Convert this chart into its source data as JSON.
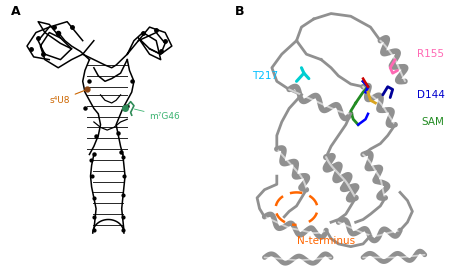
{
  "panel_A_label": "A",
  "panel_B_label": "B",
  "label_s4U8": "s⁴U8",
  "label_m7G46": "m⁷G46",
  "label_T217": "T217",
  "label_R155": "R155",
  "label_D144": "D144",
  "label_SAM": "SAM",
  "label_N_terminus": "N-terminus",
  "color_s4U8": "#CC6600",
  "color_m7G46": "#3CB371",
  "color_T217": "#00BFFF",
  "color_R155": "#FF69B4",
  "color_D144": "#0000CD",
  "color_SAM": "#228B22",
  "color_N_terminus": "#FF6600",
  "color_structure_A": "#000000",
  "color_structure_B": "#909090",
  "bg_color": "#ffffff",
  "fig_width": 4.74,
  "fig_height": 2.71
}
